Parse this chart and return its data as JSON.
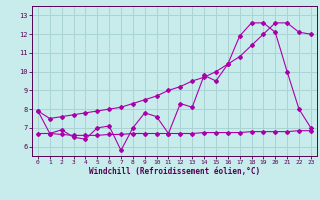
{
  "xlabel": "Windchill (Refroidissement éolien,°C)",
  "bg_color": "#c8ecec",
  "grid_color": "#aad4d4",
  "line_color": "#aa00aa",
  "x_values": [
    0,
    1,
    2,
    3,
    4,
    5,
    6,
    7,
    8,
    9,
    10,
    11,
    12,
    13,
    14,
    15,
    16,
    17,
    18,
    19,
    20,
    21,
    22,
    23
  ],
  "line1": [
    7.9,
    6.7,
    6.9,
    6.5,
    6.4,
    7.0,
    7.1,
    5.8,
    7.0,
    7.8,
    7.6,
    6.7,
    8.3,
    8.1,
    9.8,
    9.5,
    10.4,
    11.9,
    12.6,
    12.6,
    12.1,
    10.0,
    8.0,
    7.0
  ],
  "line2": [
    7.9,
    7.5,
    7.6,
    7.7,
    7.8,
    7.9,
    8.0,
    8.1,
    8.3,
    8.5,
    8.7,
    9.0,
    9.2,
    9.5,
    9.7,
    10.0,
    10.4,
    10.8,
    11.4,
    12.0,
    12.6,
    12.6,
    12.1,
    12.0
  ],
  "line3": [
    6.7,
    6.7,
    6.65,
    6.6,
    6.6,
    6.6,
    6.65,
    6.65,
    6.7,
    6.7,
    6.7,
    6.7,
    6.7,
    6.7,
    6.75,
    6.75,
    6.75,
    6.75,
    6.8,
    6.8,
    6.8,
    6.8,
    6.85,
    6.85
  ],
  "ylim": [
    5.5,
    13.5
  ],
  "yticks": [
    6,
    7,
    8,
    9,
    10,
    11,
    12,
    13
  ],
  "xticks": [
    0,
    1,
    2,
    3,
    4,
    5,
    6,
    7,
    8,
    9,
    10,
    11,
    12,
    13,
    14,
    15,
    16,
    17,
    18,
    19,
    20,
    21,
    22,
    23
  ],
  "xlim": [
    -0.5,
    23.5
  ]
}
